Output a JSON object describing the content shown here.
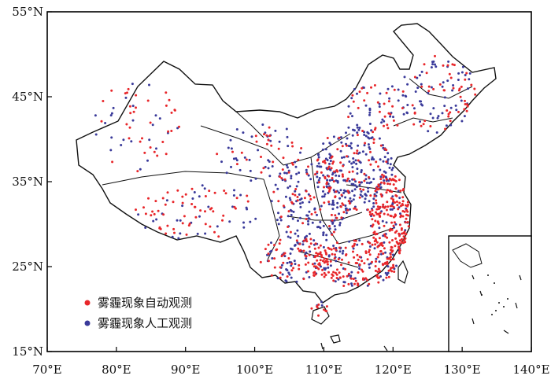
{
  "map": {
    "lon_ticks": [
      "70°E",
      "80°E",
      "90°E",
      "100°E",
      "110°E",
      "120°E",
      "130°E",
      "140°E"
    ],
    "lat_ticks": [
      "55°N",
      "45°N",
      "35°N",
      "25°N",
      "15°N"
    ],
    "lon_range": [
      70,
      140
    ],
    "lat_range": [
      15,
      55
    ],
    "frame_color": "#000000",
    "border_color": "#111111"
  },
  "legend": {
    "items": [
      {
        "label": "雾霾现象自动观测",
        "color": "#e8262a"
      },
      {
        "label": "雾霾现象人工观测",
        "color": "#3a3a9a"
      }
    ],
    "placement": "bottom-left"
  },
  "inset": {
    "description_visible": false,
    "placement": "bottom-right"
  }
}
